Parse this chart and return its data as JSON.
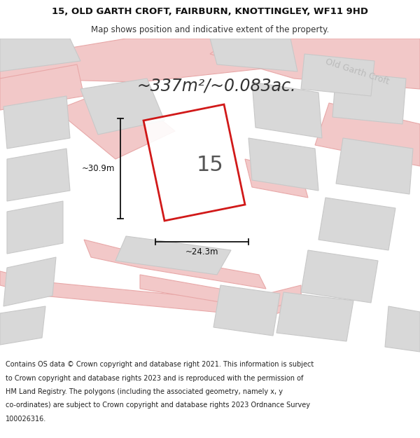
{
  "title_line1": "15, OLD GARTH CROFT, FAIRBURN, KNOTTINGLEY, WF11 9HD",
  "title_line2": "Map shows position and indicative extent of the property.",
  "area_text": "~337m²/~0.083ac.",
  "property_number": "15",
  "dim_width": "~24.3m",
  "dim_height": "~30.9m",
  "footer_lines": [
    "Contains OS data © Crown copyright and database right 2021. This information is subject",
    "to Crown copyright and database rights 2023 and is reproduced with the permission of",
    "HM Land Registry. The polygons (including the associated geometry, namely x, y",
    "co-ordinates) are subject to Crown copyright and database rights 2023 Ordnance Survey",
    "100026316."
  ],
  "map_bg": "#e8e8e8",
  "road_fill": "#f2c8c8",
  "road_edge": "#e8a8a8",
  "block_fill": "#d8d8d8",
  "block_edge": "#c8c8c8",
  "plot_outline": "#cc0000",
  "dim_color": "#111111",
  "text_dark": "#333333",
  "text_gray": "#aaaaaa",
  "white": "#ffffff",
  "title_fs": 9.5,
  "subtitle_fs": 8.5,
  "area_fs": 17,
  "num_fs": 22,
  "dim_fs": 8.5,
  "road_label_fs": 9,
  "footer_fs": 7.0
}
